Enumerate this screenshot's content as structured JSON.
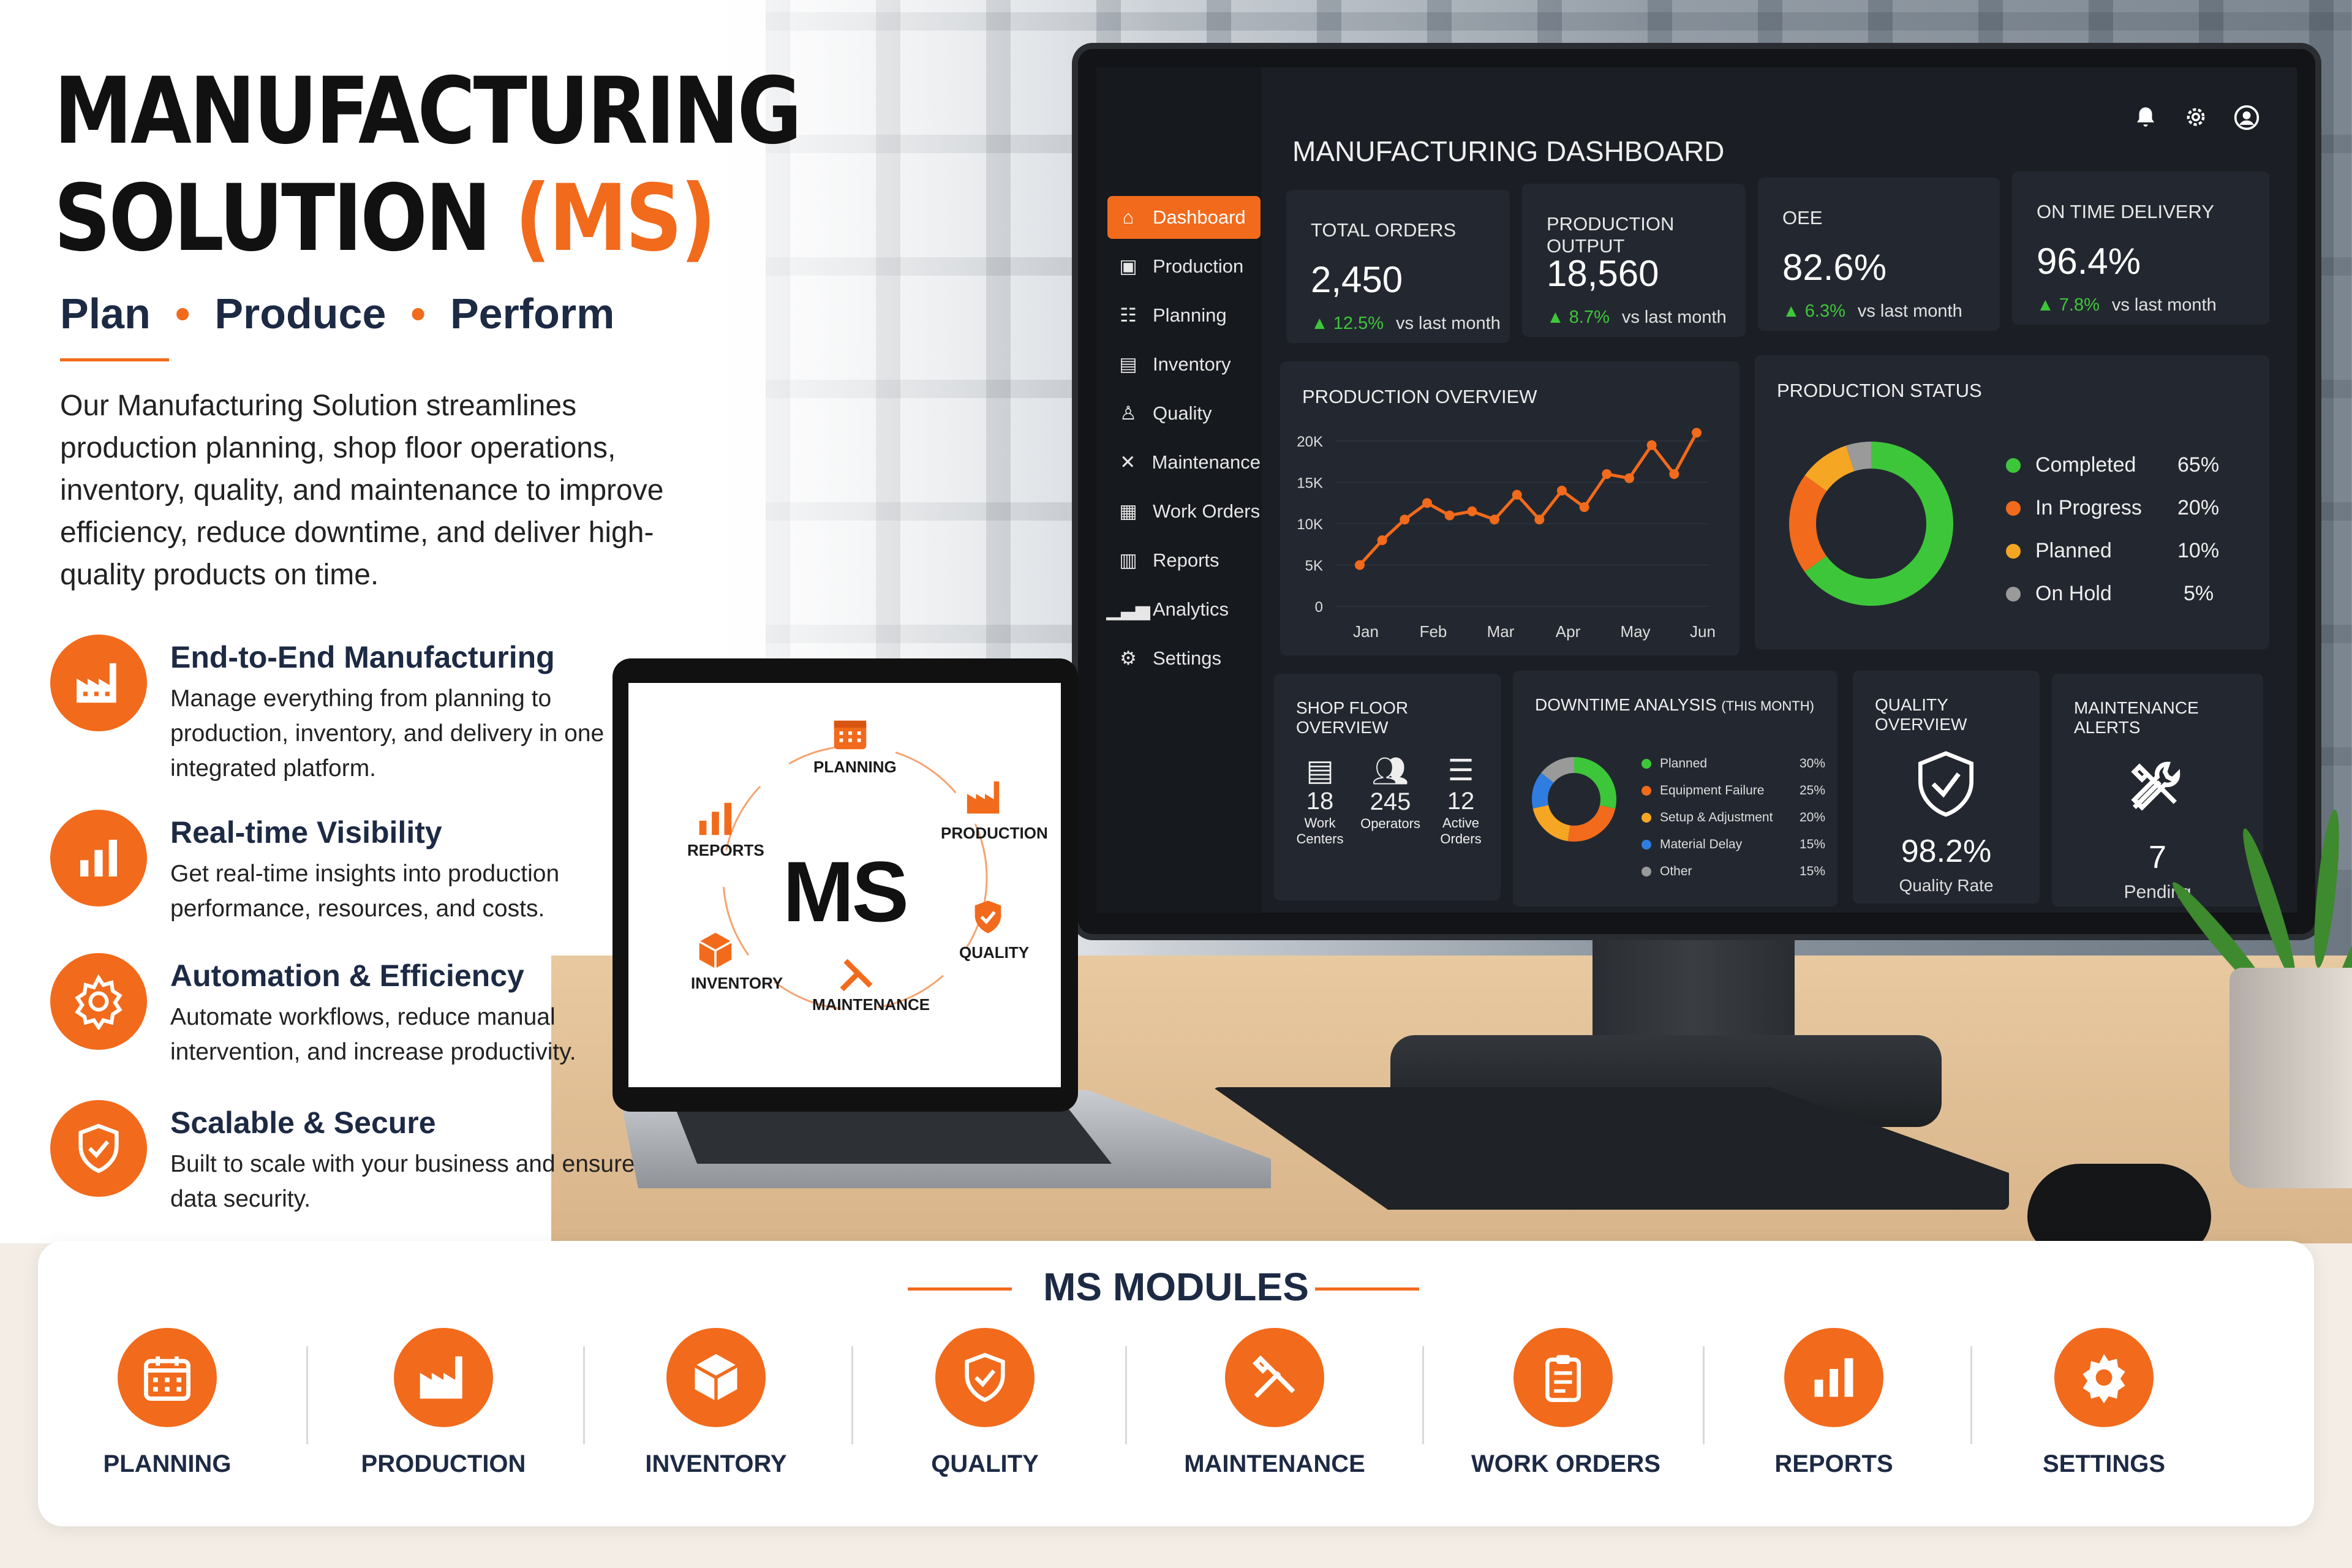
{
  "hero": {
    "title_line1": "MANUFACTURING",
    "title_line2_a": "SOLUTION ",
    "title_line2_b": "(MS)",
    "tagline": [
      "Plan",
      "Produce",
      "Perform"
    ],
    "intro": "Our Manufacturing Solution streamlines production planning, shop floor operations, inventory, quality, and maintenance to improve efficiency, reduce downtime, and deliver high-quality products on time."
  },
  "features": [
    {
      "title": "End-to-End Manufacturing",
      "desc": "Manage everything from planning to production, inventory, and delivery in one integrated platform.",
      "icon": "factory-icon"
    },
    {
      "title": "Real-time Visibility",
      "desc": "Get real-time insights into production performance, resources, and costs.",
      "icon": "bar-chart-icon"
    },
    {
      "title": "Automation & Efficiency",
      "desc": "Automate workflows, reduce manual intervention, and increase productivity.",
      "icon": "gear-icon"
    },
    {
      "title": "Scalable & Secure",
      "desc": "Built to scale with your business and ensure data security.",
      "icon": "shield-check-icon"
    }
  ],
  "dashboard": {
    "title": "MANUFACTURING DASHBOARD",
    "nav": [
      "Dashboard",
      "Production",
      "Planning",
      "Inventory",
      "Quality",
      "Maintenance",
      "Work Orders",
      "Reports",
      "Analytics",
      "Settings"
    ],
    "active_nav": "Dashboard",
    "kpis": [
      {
        "label": "TOTAL ORDERS",
        "value": "2,450",
        "delta": "12.5%",
        "delta_text": "vs last month"
      },
      {
        "label": "PRODUCTION OUTPUT",
        "value": "18,560",
        "delta": "8.7%",
        "delta_text": "vs last month"
      },
      {
        "label": "OEE",
        "value": "82.6%",
        "delta": "6.3%",
        "delta_text": "vs last month"
      },
      {
        "label": "ON TIME DELIVERY",
        "value": "96.4%",
        "delta": "7.8%",
        "delta_text": "vs last month"
      }
    ],
    "production_overview": {
      "title": "PRODUCTION OVERVIEW",
      "y_ticks": [
        "20K",
        "15K",
        "10K",
        "5K",
        "0"
      ],
      "x_ticks": [
        "Jan",
        "Feb",
        "Mar",
        "Apr",
        "May",
        "Jun"
      ],
      "points": [
        5000,
        8000,
        10500,
        12500,
        11000,
        11500,
        10500,
        13500,
        10500,
        14000,
        12000,
        16000,
        15500,
        19500,
        16000,
        21000
      ],
      "ymax": 20000
    },
    "production_status": {
      "title": "PRODUCTION STATUS",
      "items": [
        {
          "label": "Completed",
          "pct": "65%",
          "value": 65,
          "color": "#3ec63a"
        },
        {
          "label": "In Progress",
          "pct": "20%",
          "value": 20,
          "color": "#f26a1b"
        },
        {
          "label": "Planned",
          "pct": "10%",
          "value": 10,
          "color": "#f5a623"
        },
        {
          "label": "On Hold",
          "pct": "5%",
          "value": 5,
          "color": "#9a9a9a"
        }
      ]
    },
    "shop_floor": {
      "title": "SHOP FLOOR OVERVIEW",
      "stats": [
        {
          "num": "18",
          "label": "Work Centers"
        },
        {
          "num": "245",
          "label": "Operators"
        },
        {
          "num": "12",
          "label": "Active Orders"
        }
      ]
    },
    "downtime": {
      "title": "DOWNTIME ANALYSIS",
      "subtitle": "(THIS MONTH)",
      "items": [
        {
          "label": "Planned",
          "pct": "30%",
          "value": 30,
          "color": "#3ec63a"
        },
        {
          "label": "Equipment Failure",
          "pct": "25%",
          "value": 25,
          "color": "#f26a1b"
        },
        {
          "label": "Setup & Adjustment",
          "pct": "20%",
          "value": 20,
          "color": "#f5a623"
        },
        {
          "label": "Material Delay",
          "pct": "15%",
          "value": 15,
          "color": "#2f7de1"
        },
        {
          "label": "Other",
          "pct": "15%",
          "value": 15,
          "color": "#9a9a9a"
        }
      ]
    },
    "quality": {
      "title": "QUALITY OVERVIEW",
      "value": "98.2%",
      "label": "Quality Rate"
    },
    "maintenance": {
      "title": "MAINTENANCE ALERTS",
      "value": "7",
      "label": "Pending"
    }
  },
  "laptop": {
    "center": "MS",
    "modules": [
      "PLANNING",
      "PRODUCTION",
      "QUALITY",
      "MAINTENANCE",
      "INVENTORY",
      "REPORTS"
    ]
  },
  "modules": {
    "title": "MS MODULES",
    "items": [
      {
        "label": "PLANNING",
        "icon": "calendar-icon"
      },
      {
        "label": "PRODUCTION",
        "icon": "factory-icon"
      },
      {
        "label": "INVENTORY",
        "icon": "box-icon"
      },
      {
        "label": "QUALITY",
        "icon": "shield-check-icon"
      },
      {
        "label": "MAINTENANCE",
        "icon": "tools-icon"
      },
      {
        "label": "WORK ORDERS",
        "icon": "clipboard-icon"
      },
      {
        "label": "REPORTS",
        "icon": "bar-chart-icon"
      },
      {
        "label": "SETTINGS",
        "icon": "gear-icon"
      }
    ]
  },
  "colors": {
    "accent": "#f26a1b",
    "navy": "#1d2a44",
    "dash_bg": "#1b1f25",
    "card": "#232830",
    "green": "#3ec63a"
  }
}
